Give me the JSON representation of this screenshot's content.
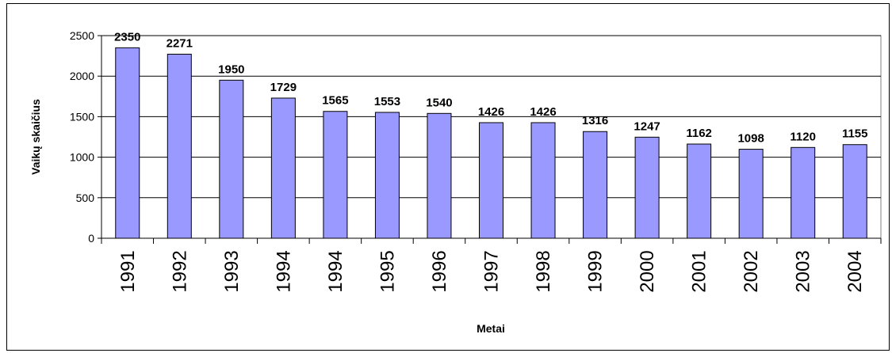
{
  "chart_data": {
    "type": "bar",
    "title": "",
    "xlabel": "Metai",
    "ylabel": "Vaikų skaičius",
    "categories": [
      "1991",
      "1992",
      "1993",
      "1994",
      "1994",
      "1995",
      "1996",
      "1997",
      "1998",
      "1999",
      "2000",
      "2001",
      "2002",
      "2003",
      "2004"
    ],
    "values": [
      2350,
      2271,
      1950,
      1729,
      1565,
      1553,
      1540,
      1426,
      1426,
      1316,
      1247,
      1162,
      1098,
      1120,
      1155
    ],
    "ylim": [
      0,
      2500
    ],
    "yticks": [
      0,
      500,
      1000,
      1500,
      2000,
      2500
    ],
    "grid": true,
    "legend": "none",
    "data_labels": true,
    "colors": {
      "bar_fill": "#9999ff",
      "bar_stroke": "#000000",
      "plot_background": "#ffffff",
      "gridline": "#000000"
    }
  }
}
